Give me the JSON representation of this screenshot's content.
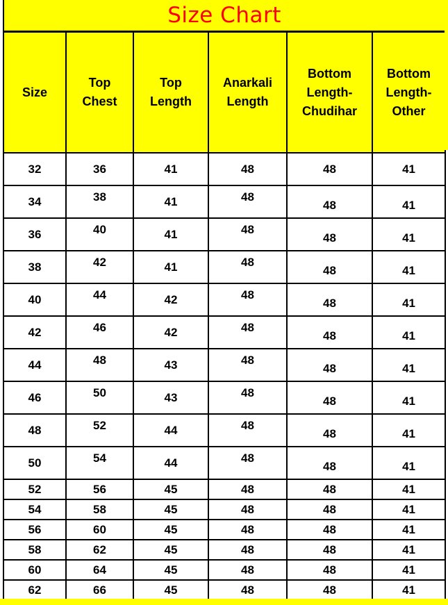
{
  "title": "Size Chart",
  "colors": {
    "band_bg": "#ffff00",
    "title_text": "#fe0000",
    "border": "#000000",
    "cell_bg": "#ffffff",
    "body_text": "#000000"
  },
  "chart_data": {
    "type": "table",
    "title": "Size Chart",
    "columns": [
      "Size",
      "Top Chest",
      "Top Length",
      "Anarkali Length",
      "Bottom Length-Chudihar",
      "Bottom Length-Other"
    ],
    "rows": [
      [
        32,
        36,
        41,
        48,
        48,
        41
      ],
      [
        34,
        38,
        41,
        48,
        48,
        41
      ],
      [
        36,
        40,
        41,
        48,
        48,
        41
      ],
      [
        38,
        42,
        41,
        48,
        48,
        41
      ],
      [
        40,
        44,
        42,
        48,
        48,
        41
      ],
      [
        42,
        46,
        42,
        48,
        48,
        41
      ],
      [
        44,
        48,
        43,
        48,
        48,
        41
      ],
      [
        46,
        50,
        43,
        48,
        48,
        41
      ],
      [
        48,
        52,
        44,
        48,
        48,
        41
      ],
      [
        50,
        54,
        44,
        48,
        48,
        41
      ],
      [
        52,
        56,
        45,
        48,
        48,
        41
      ],
      [
        54,
        58,
        45,
        48,
        48,
        41
      ],
      [
        56,
        60,
        45,
        48,
        48,
        41
      ],
      [
        58,
        62,
        45,
        48,
        48,
        41
      ],
      [
        60,
        64,
        45,
        48,
        48,
        41
      ],
      [
        62,
        66,
        45,
        48,
        48,
        41
      ]
    ]
  }
}
